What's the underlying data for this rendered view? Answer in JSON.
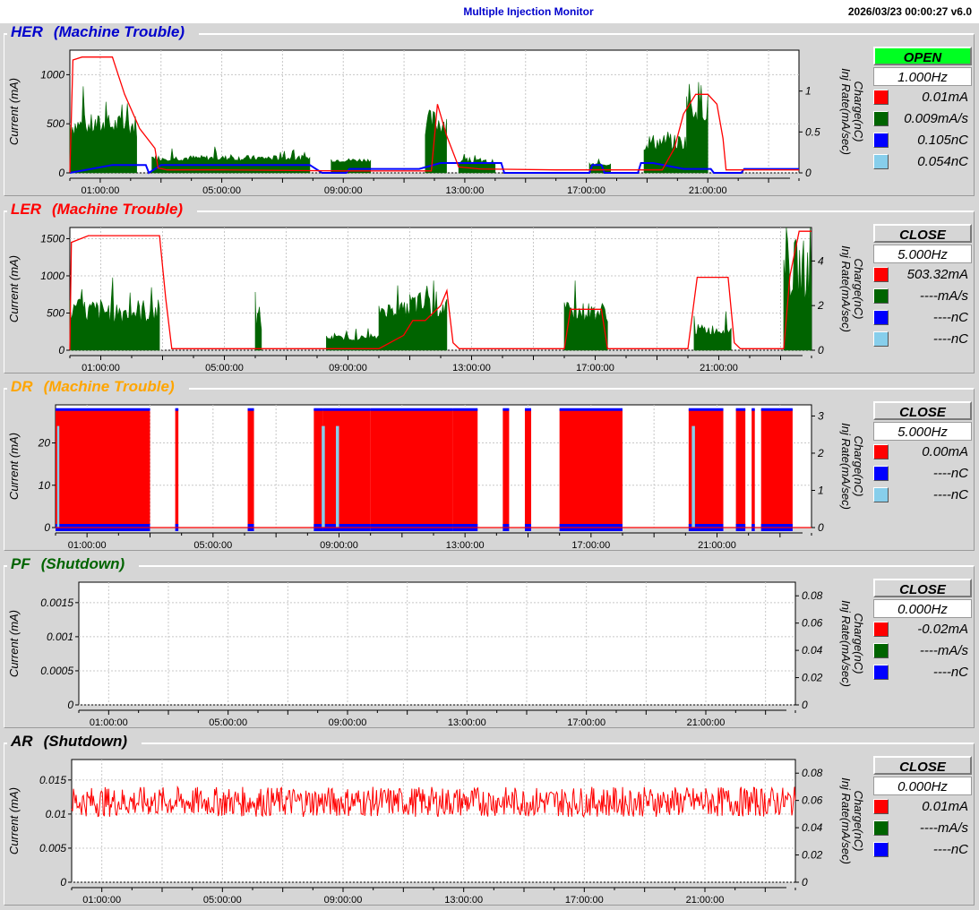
{
  "header": {
    "title": "Multiple Injection Monitor",
    "timestamp": "2026/03/23 00:00:27   v6.0"
  },
  "colors": {
    "current": "#ff0000",
    "rate": "#006400",
    "charge": "#0000ff",
    "charge2": "#87ceeb"
  },
  "chart_data": [
    {
      "id": "her",
      "type": "line",
      "title": "HER",
      "status": "(Machine Trouble)",
      "title_color": "#0000cc",
      "ylabel": "Current (mA)",
      "y2label": "Charge(nC)\nInj Rate(mA/sec)",
      "ylim": [
        0,
        1250
      ],
      "y2lim": [
        0,
        1.5
      ],
      "yticks": [
        "0",
        "500",
        "1000"
      ],
      "ytick_values": [
        0,
        500,
        1000
      ],
      "y2ticks": [
        "0",
        "0.5",
        "1"
      ],
      "y2tick_values": [
        0,
        0.5,
        1
      ],
      "x_range_hours": [
        0,
        24
      ],
      "xticks": [
        "01:00:00",
        "05:00:00",
        "09:00:00",
        "13:00:00",
        "17:00:00",
        "21:00:00"
      ],
      "xtick_hours": [
        1,
        5,
        9,
        13,
        17,
        21
      ],
      "button": {
        "label": "OPEN",
        "state": "open"
      },
      "rate": "1.000Hz",
      "legend": [
        {
          "color": "#ff0000",
          "value": "0.01mA"
        },
        {
          "color": "#006400",
          "value": "0.009mA/s"
        },
        {
          "color": "#0000ff",
          "value": "0.105nC"
        },
        {
          "color": "#87ceeb",
          "value": "0.054nC"
        }
      ],
      "current_trace": [
        [
          0,
          0
        ],
        [
          0.1,
          1150
        ],
        [
          0.4,
          1180
        ],
        [
          1.4,
          1180
        ],
        [
          1.8,
          800
        ],
        [
          2.3,
          450
        ],
        [
          2.8,
          250
        ],
        [
          2.9,
          50
        ],
        [
          3.2,
          30
        ],
        [
          5,
          30
        ],
        [
          9,
          20
        ],
        [
          11.9,
          20
        ],
        [
          12.1,
          700
        ],
        [
          12.4,
          380
        ],
        [
          12.8,
          60
        ],
        [
          13.5,
          40
        ],
        [
          16,
          30
        ],
        [
          19.5,
          30
        ],
        [
          19.9,
          250
        ],
        [
          20.2,
          600
        ],
        [
          20.6,
          800
        ],
        [
          21.0,
          800
        ],
        [
          21.3,
          700
        ],
        [
          21.5,
          350
        ],
        [
          21.6,
          30
        ],
        [
          24,
          30
        ]
      ],
      "charge_trace": [
        [
          0,
          0
        ],
        [
          1.4,
          80
        ],
        [
          2.5,
          80
        ],
        [
          2.6,
          0
        ],
        [
          3.0,
          80
        ],
        [
          7.9,
          80
        ],
        [
          8.3,
          0
        ],
        [
          9.1,
          0
        ],
        [
          9.2,
          40
        ],
        [
          11.5,
          40
        ],
        [
          12.2,
          100
        ],
        [
          14.2,
          100
        ],
        [
          14.3,
          0
        ],
        [
          17.1,
          0
        ],
        [
          17.2,
          80
        ],
        [
          17.5,
          80
        ],
        [
          17.6,
          0
        ],
        [
          18.7,
          0
        ],
        [
          18.8,
          100
        ],
        [
          19.2,
          100
        ],
        [
          20.2,
          40
        ],
        [
          21.1,
          40
        ],
        [
          21.2,
          0
        ],
        [
          22.1,
          0
        ],
        [
          22.2,
          40
        ],
        [
          24,
          40
        ]
      ],
      "rate_blocks": [
        [
          0,
          2.2,
          200,
          600
        ],
        [
          2.7,
          7.9,
          80,
          180
        ],
        [
          8.6,
          9.9,
          80,
          150
        ],
        [
          11.7,
          12.4,
          200,
          650
        ],
        [
          12.8,
          14.0,
          50,
          140
        ],
        [
          17.1,
          17.8,
          50,
          100
        ],
        [
          18.9,
          20.3,
          100,
          400
        ],
        [
          20.3,
          21.0,
          200,
          950
        ]
      ]
    },
    {
      "id": "ler",
      "type": "line",
      "title": "LER",
      "status": "(Machine Trouble)",
      "title_color": "#ff0000",
      "ylabel": "Current (mA)",
      "y2label": "Charge(nC)\nInj Rate(mA/sec)",
      "ylim": [
        0,
        1650
      ],
      "y2lim": [
        0,
        5.5
      ],
      "yticks": [
        "0",
        "500",
        "1000",
        "1500"
      ],
      "ytick_values": [
        0,
        500,
        1000,
        1500
      ],
      "y2ticks": [
        "0",
        "2",
        "4"
      ],
      "y2tick_values": [
        0,
        2,
        4
      ],
      "x_range_hours": [
        0,
        24
      ],
      "xticks": [
        "01:00:00",
        "05:00:00",
        "09:00:00",
        "13:00:00",
        "17:00:00",
        "21:00:00"
      ],
      "xtick_hours": [
        1,
        5,
        9,
        13,
        17,
        21
      ],
      "button": {
        "label": "CLOSE",
        "state": "close"
      },
      "rate": "5.000Hz",
      "legend": [
        {
          "color": "#ff0000",
          "value": "503.32mA"
        },
        {
          "color": "#006400",
          "value": "----mA/s"
        },
        {
          "color": "#0000ff",
          "value": "----nC"
        },
        {
          "color": "#87ceeb",
          "value": "----nC"
        }
      ],
      "current_trace": [
        [
          0,
          0
        ],
        [
          0.05,
          1450
        ],
        [
          0.6,
          1540
        ],
        [
          2.9,
          1540
        ],
        [
          3.1,
          700
        ],
        [
          3.3,
          20
        ],
        [
          10,
          20
        ],
        [
          10.8,
          200
        ],
        [
          11.1,
          400
        ],
        [
          11.5,
          400
        ],
        [
          12.0,
          600
        ],
        [
          12.2,
          800
        ],
        [
          12.4,
          100
        ],
        [
          12.6,
          20
        ],
        [
          16.0,
          20
        ],
        [
          16.2,
          550
        ],
        [
          17.2,
          550
        ],
        [
          17.4,
          20
        ],
        [
          20.0,
          20
        ],
        [
          20.3,
          980
        ],
        [
          21.3,
          980
        ],
        [
          21.5,
          100
        ],
        [
          21.7,
          20
        ],
        [
          23.1,
          20
        ],
        [
          23.3,
          1000
        ],
        [
          23.6,
          1600
        ],
        [
          24,
          1600
        ]
      ],
      "charge_trace": [],
      "rate_blocks": [
        [
          0,
          2.9,
          100,
          700
        ],
        [
          6.0,
          6.2,
          0,
          600
        ],
        [
          8.3,
          10.0,
          80,
          200
        ],
        [
          10.0,
          11.0,
          300,
          650
        ],
        [
          11.0,
          12.2,
          150,
          800
        ],
        [
          16.0,
          17.4,
          200,
          650
        ],
        [
          20.2,
          21.4,
          100,
          350
        ],
        [
          23.1,
          24.0,
          100,
          1500
        ]
      ]
    },
    {
      "id": "dr",
      "type": "line",
      "title": "DR",
      "status": "(Machine Trouble)",
      "title_color": "#ffa500",
      "ylabel": "Current (mA)",
      "y2label": "Charge(nC)\nInj Rate(mA/sec)",
      "ylim": [
        0,
        29
      ],
      "y2lim": [
        0,
        3.3
      ],
      "yticks": [
        "0",
        "10",
        "20"
      ],
      "ytick_values": [
        0,
        10,
        20
      ],
      "y2ticks": [
        "0",
        "1",
        "2",
        "3"
      ],
      "y2tick_values": [
        0,
        1,
        2,
        3
      ],
      "x_range_hours": [
        0,
        24
      ],
      "xticks": [
        "01:00:00",
        "05:00:00",
        "09:00:00",
        "13:00:00",
        "17:00:00",
        "21:00:00"
      ],
      "xtick_hours": [
        1,
        5,
        9,
        13,
        17,
        21
      ],
      "button": {
        "label": "CLOSE",
        "state": "close"
      },
      "rate": "5.000Hz",
      "legend": [
        {
          "color": "#ff0000",
          "value": "0.00mA"
        },
        {
          "color": "#0000ff",
          "value": "----nC"
        },
        {
          "color": "#87ceeb",
          "value": "----nC"
        }
      ],
      "current_trace": [
        [
          0,
          0
        ],
        [
          24,
          0
        ]
      ],
      "charge_trace": [],
      "fill_blocks": [
        [
          0,
          3.0
        ],
        [
          3.8,
          3.9
        ],
        [
          6.1,
          6.3
        ],
        [
          8.2,
          8.5
        ],
        [
          8.5,
          10.0
        ],
        [
          10.0,
          12.6
        ],
        [
          12.6,
          13.4
        ],
        [
          14.2,
          14.4
        ],
        [
          14.9,
          15.1
        ],
        [
          16.0,
          18.0
        ],
        [
          20.1,
          21.2
        ],
        [
          21.6,
          21.9
        ],
        [
          22.1,
          22.2
        ],
        [
          22.4,
          23.4
        ]
      ],
      "fill_top": 28
    },
    {
      "id": "pf",
      "type": "line",
      "title": "PF",
      "status": "(Shutdown)",
      "title_color": "#006400",
      "ylabel": "Current (mA)",
      "y2label": "Charge(nC)\nInj Rate(mA/sec)",
      "ylim": [
        0,
        0.0018
      ],
      "y2lim": [
        0,
        0.09
      ],
      "yticks": [
        "0",
        "0.0005",
        "0.001",
        "0.0015"
      ],
      "ytick_values": [
        0,
        0.0005,
        0.001,
        0.0015
      ],
      "y2ticks": [
        "0",
        "0.02",
        "0.04",
        "0.06",
        "0.08"
      ],
      "y2tick_values": [
        0,
        0.02,
        0.04,
        0.06,
        0.08
      ],
      "x_range_hours": [
        0,
        24
      ],
      "xticks": [
        "01:00:00",
        "05:00:00",
        "09:00:00",
        "13:00:00",
        "17:00:00",
        "21:00:00"
      ],
      "xtick_hours": [
        1,
        5,
        9,
        13,
        17,
        21
      ],
      "button": {
        "label": "CLOSE",
        "state": "close"
      },
      "rate": "0.000Hz",
      "legend": [
        {
          "color": "#ff0000",
          "value": "-0.02mA"
        },
        {
          "color": "#006400",
          "value": "----mA/s"
        },
        {
          "color": "#0000ff",
          "value": "----nC"
        }
      ],
      "current_trace": [],
      "charge_trace": []
    },
    {
      "id": "ar",
      "type": "line",
      "title": "AR",
      "status": "(Shutdown)",
      "title_color": "#000000",
      "ylabel": "Current (mA)",
      "y2label": "Charge(nC)\nInj Rate(mA/sec)",
      "ylim": [
        0,
        0.018
      ],
      "y2lim": [
        0,
        0.09
      ],
      "yticks": [
        "0",
        "0.005",
        "0.01",
        "0.015"
      ],
      "ytick_values": [
        0,
        0.005,
        0.01,
        0.015
      ],
      "y2ticks": [
        "0",
        "0.02",
        "0.04",
        "0.06",
        "0.08"
      ],
      "y2tick_values": [
        0,
        0.02,
        0.04,
        0.06,
        0.08
      ],
      "x_range_hours": [
        0,
        24
      ],
      "xticks": [
        "01:00:00",
        "05:00:00",
        "09:00:00",
        "13:00:00",
        "17:00:00",
        "21:00:00"
      ],
      "xtick_hours": [
        1,
        5,
        9,
        13,
        17,
        21
      ],
      "button": {
        "label": "CLOSE",
        "state": "close"
      },
      "rate": "0.000Hz",
      "legend": [
        {
          "color": "#ff0000",
          "value": "0.01mA"
        },
        {
          "color": "#006400",
          "value": "----mA/s"
        },
        {
          "color": "#0000ff",
          "value": "----nC"
        }
      ],
      "noise_band": {
        "center": 0.0118,
        "amplitude": 0.0022
      },
      "current_trace": [],
      "charge_trace": []
    }
  ]
}
